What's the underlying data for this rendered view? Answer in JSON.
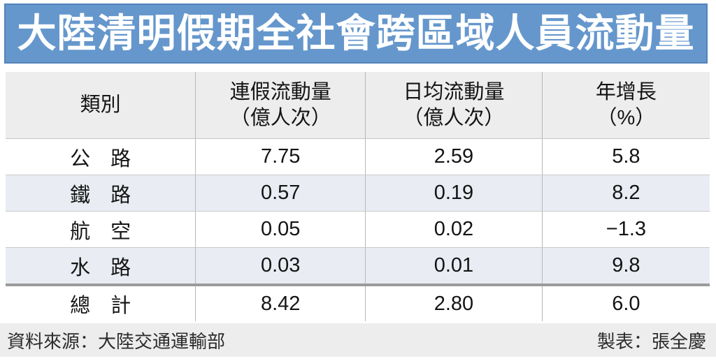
{
  "title": "大陸清明假期全社會跨區域人員流動量",
  "colors": {
    "title_bg": "#6597cc",
    "title_border": "#5283ba",
    "title_text": "#ffffff",
    "header_bg": "#ededed",
    "stripe_bg": "#e9edf3",
    "footer_bg": "#ededed",
    "thin_line": "#c9c9c9",
    "thick_line": "#9b9b9b"
  },
  "table": {
    "headers": {
      "col0": {
        "line1": "類別",
        "line2": ""
      },
      "col1": {
        "line1": "連假流動量",
        "line2": "（億人次）"
      },
      "col2": {
        "line1": "日均流動量",
        "line2": "（億人次）"
      },
      "col3": {
        "line1": "年增長",
        "line2": "（%）"
      }
    },
    "rows": [
      {
        "category": "公　路",
        "values": [
          "7.75",
          "2.59",
          "5.8"
        ]
      },
      {
        "category": "鐵　路",
        "values": [
          "0.57",
          "0.19",
          "8.2"
        ]
      },
      {
        "category": "航　空",
        "values": [
          "0.05",
          "0.02",
          "−1.3"
        ]
      },
      {
        "category": "水　路",
        "values": [
          "0.03",
          "0.01",
          "9.8"
        ]
      }
    ],
    "total": {
      "category": "總　計",
      "values": [
        "8.42",
        "2.80",
        "6.0"
      ]
    }
  },
  "footer": {
    "source": "資料來源：大陸交通運輸部",
    "credit": "製表：張全慶"
  },
  "chart_data": {
    "type": "table",
    "title": "大陸清明假期全社會跨區域人員流動量",
    "columns": [
      "類別",
      "連假流動量（億人次）",
      "日均流動量（億人次）",
      "年增長（%）"
    ],
    "rows": [
      [
        "公路",
        7.75,
        2.59,
        5.8
      ],
      [
        "鐵路",
        0.57,
        0.19,
        8.2
      ],
      [
        "航空",
        0.05,
        0.02,
        -1.3
      ],
      [
        "水路",
        0.03,
        0.01,
        9.8
      ],
      [
        "總計",
        8.42,
        2.8,
        6.0
      ]
    ],
    "notes": {
      "source": "資料來源：大陸交通運輸部",
      "credit": "製表：張全慶"
    }
  }
}
